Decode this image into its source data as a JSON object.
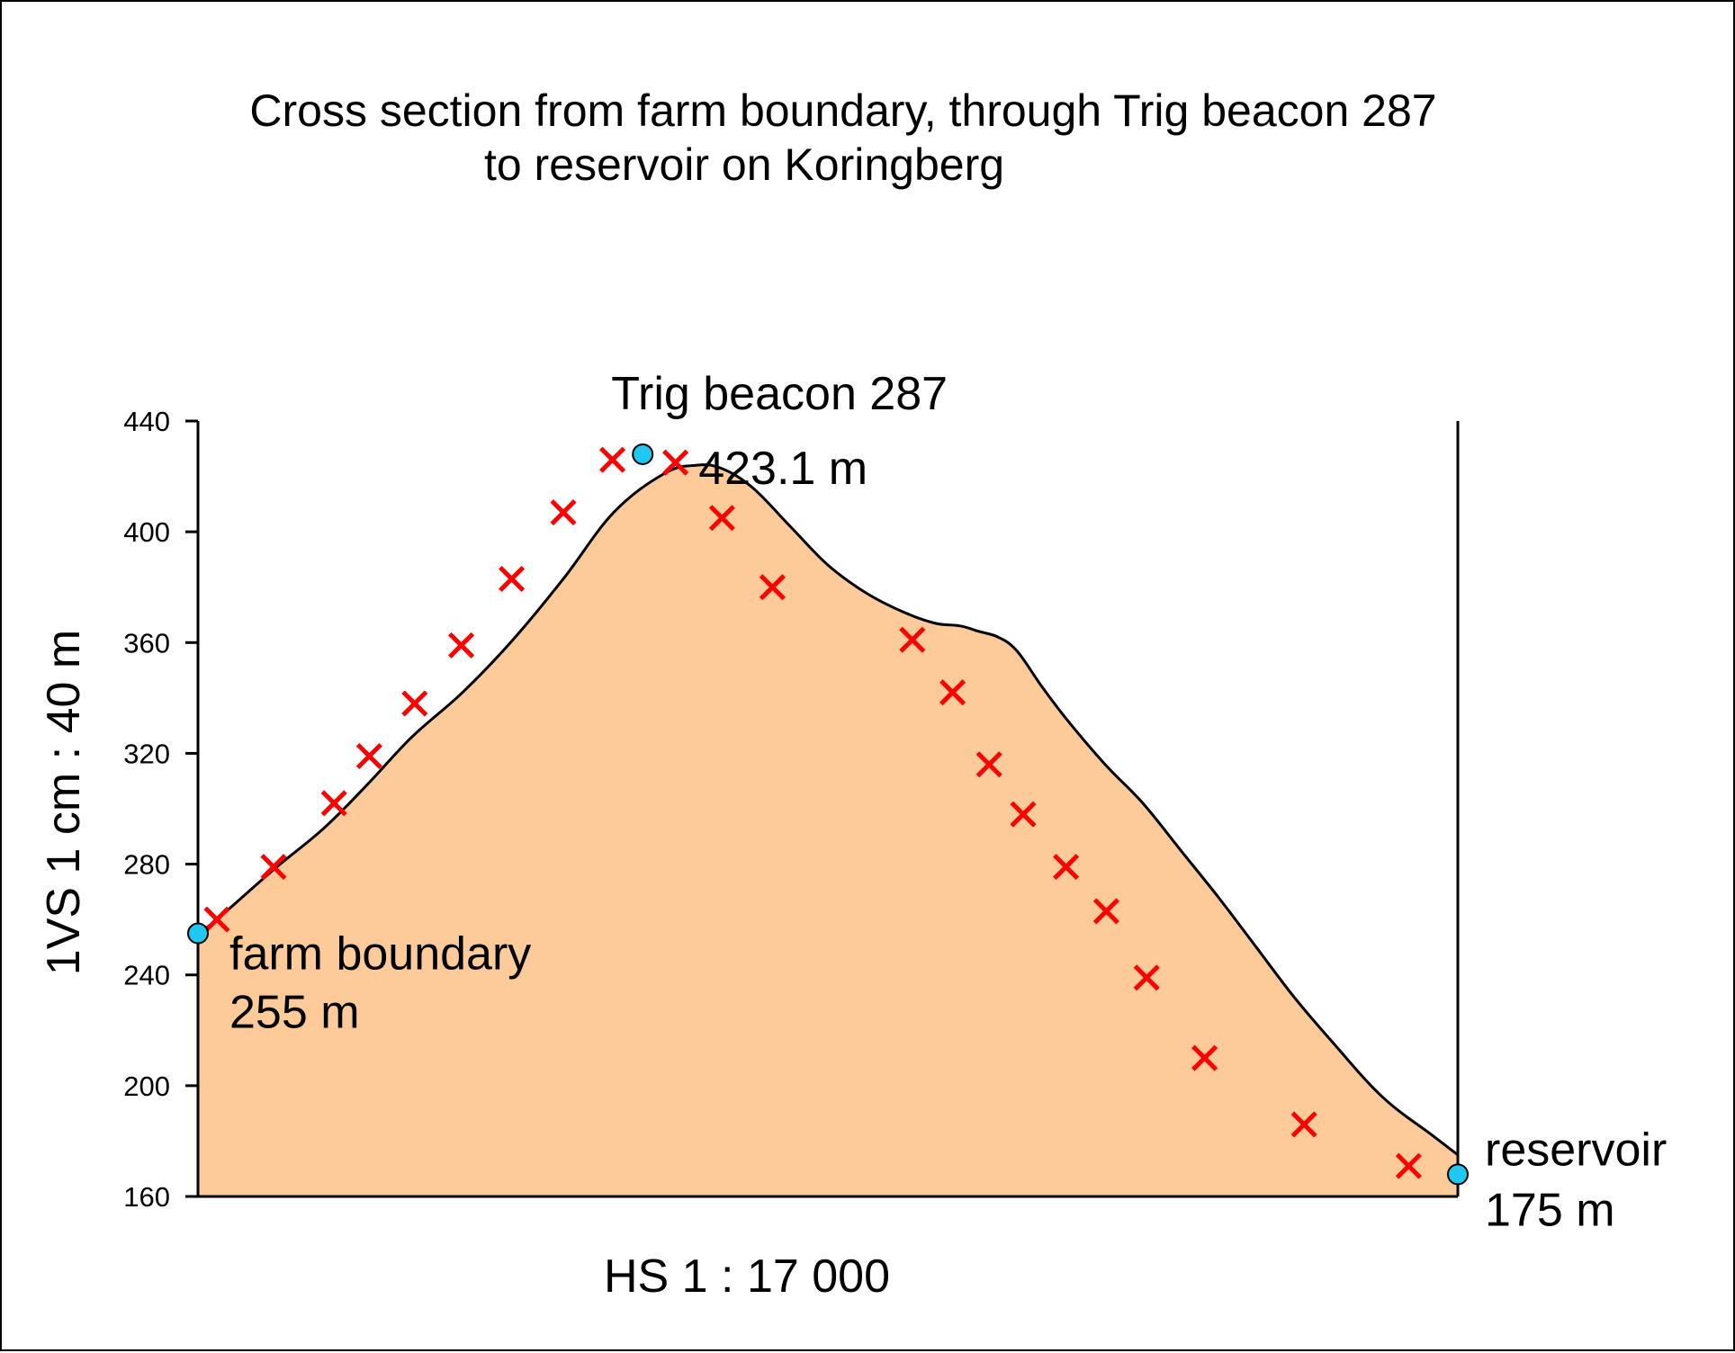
{
  "chart_data": {
    "type": "area",
    "title_lines": [
      "Cross section from farm boundary, through Trig beacon 287",
      "to reservoir on Koringberg"
    ],
    "ylabel": "1VS 1 cm : 40 m",
    "xlabel": "HS 1 : 17 000",
    "ylim": [
      160,
      440
    ],
    "yticks": [
      "160",
      "200",
      "240",
      "280",
      "320",
      "360",
      "400",
      "440"
    ],
    "xlim": [
      0,
      100
    ],
    "profile": [
      [
        0,
        255
      ],
      [
        1.5,
        260
      ],
      [
        6,
        278
      ],
      [
        10,
        293
      ],
      [
        13.5,
        309
      ],
      [
        17,
        326
      ],
      [
        21,
        342
      ],
      [
        25,
        361
      ],
      [
        29,
        383
      ],
      [
        33,
        407
      ],
      [
        37,
        421
      ],
      [
        39.5,
        424
      ],
      [
        41.5,
        423
      ],
      [
        44,
        416
      ],
      [
        47,
        402
      ],
      [
        50,
        388
      ],
      [
        53,
        378
      ],
      [
        56,
        371
      ],
      [
        58.5,
        367
      ],
      [
        60.5,
        366
      ],
      [
        62,
        364
      ],
      [
        63.5,
        362
      ],
      [
        65,
        357
      ],
      [
        67,
        344
      ],
      [
        69,
        332
      ],
      [
        72,
        316
      ],
      [
        75,
        302
      ],
      [
        78,
        285
      ],
      [
        81,
        268
      ],
      [
        84,
        250
      ],
      [
        87,
        232
      ],
      [
        90,
        216
      ],
      [
        94,
        196
      ],
      [
        98,
        182
      ],
      [
        100,
        175
      ]
    ],
    "x_markers": [
      [
        1.5,
        260
      ],
      [
        6,
        279
      ],
      [
        10.8,
        302
      ],
      [
        13.6,
        319
      ],
      [
        17.2,
        338
      ],
      [
        20.9,
        359
      ],
      [
        24.9,
        383
      ],
      [
        29,
        407
      ],
      [
        32.9,
        426
      ],
      [
        37.9,
        425
      ],
      [
        41.6,
        405
      ],
      [
        45.6,
        380
      ],
      [
        56.7,
        361
      ],
      [
        59.9,
        342
      ],
      [
        62.8,
        316
      ],
      [
        65.5,
        298
      ],
      [
        68.9,
        279
      ],
      [
        72.1,
        263
      ],
      [
        75.3,
        239
      ],
      [
        79.9,
        210
      ],
      [
        87.8,
        186
      ],
      [
        96.1,
        171
      ]
    ],
    "points": [
      {
        "name": "farm boundary",
        "x": 0,
        "y": 255,
        "label": "farm boundary",
        "value_label": "255 m"
      },
      {
        "name": "Trig beacon 287",
        "x": 35.3,
        "y": 428,
        "label": "Trig beacon 287",
        "value_label": "423.1 m"
      },
      {
        "name": "reservoir",
        "x": 100,
        "y": 168,
        "label": "reservoir",
        "value_label": "175 m"
      }
    ],
    "colors": {
      "fill": "#FDCB9A",
      "line": "#000000",
      "marker": "#FF0000",
      "point": "#1EC8F0"
    }
  }
}
